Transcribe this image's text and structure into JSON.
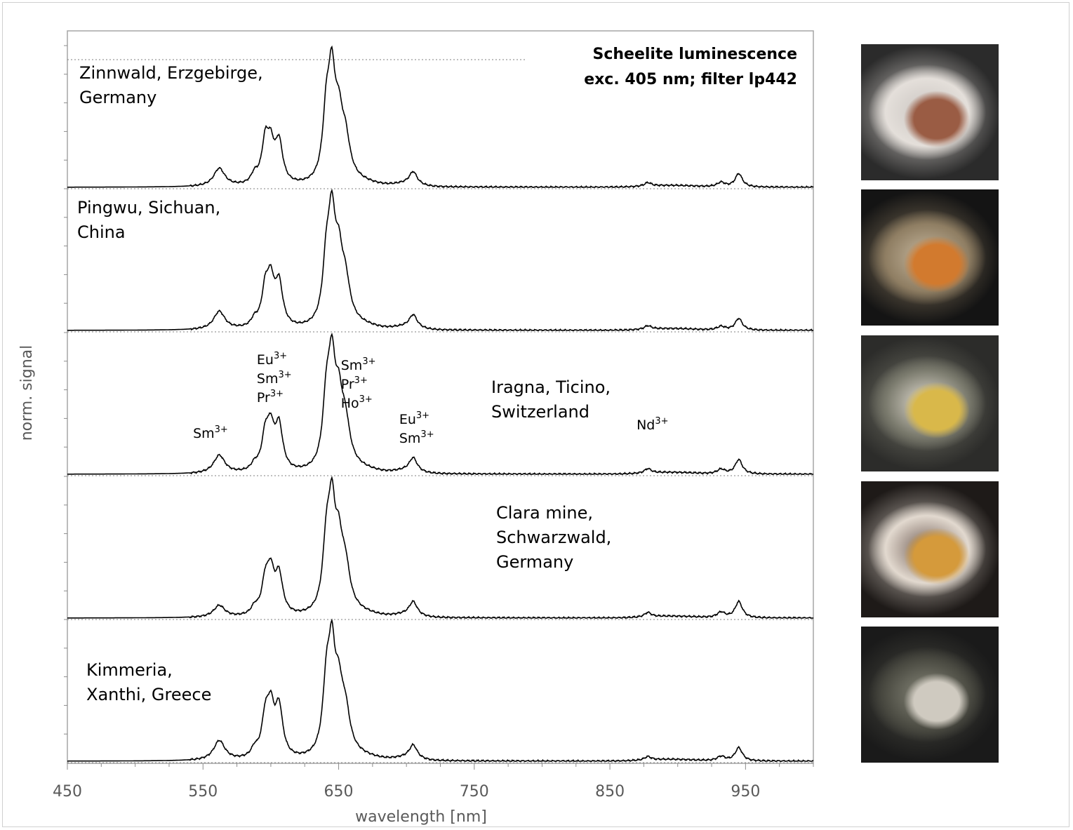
{
  "chart_data": {
    "type": "line",
    "title": [
      "Scheelite luminescence",
      "exc. 405 nm; filter lp442"
    ],
    "xlabel": "wavelength [nm]",
    "ylabel": "norm. signal",
    "xlim": [
      450,
      1000
    ],
    "xticks": [
      "450",
      "550",
      "650",
      "750",
      "850",
      "950"
    ],
    "xtick_values": [
      450,
      550,
      650,
      750,
      850,
      950
    ],
    "panel_ylim": [
      0,
      1
    ],
    "line_color": "#000000",
    "panels": [
      {
        "label": [
          "Zinnwald, Erzgebirge,",
          "Germany"
        ],
        "peak_scale": {
          "562": 0.2,
          "588": 0.1,
          "596": 0.46,
          "600": 0.34,
          "606": 0.45,
          "641": 0.7,
          "645": 1.0,
          "650": 0.58,
          "655": 0.4,
          "705": 0.14,
          "878": 0.04,
          "932": 0.05,
          "945": 0.15
        }
      },
      {
        "label": [
          "Pingwu, Sichuan,",
          "China"
        ],
        "peak_scale": {
          "562": 0.2,
          "588": 0.08,
          "596": 0.4,
          "600": 0.43,
          "606": 0.47,
          "641": 0.64,
          "645": 1.0,
          "650": 0.62,
          "655": 0.4,
          "705": 0.14,
          "878": 0.04,
          "932": 0.04,
          "945": 0.13
        }
      },
      {
        "label": [
          "Iragna, Ticino,",
          "Switzerland"
        ],
        "peak_scale": {
          "562": 0.2,
          "588": 0.07,
          "596": 0.38,
          "600": 0.39,
          "606": 0.49,
          "641": 0.7,
          "645": 0.98,
          "650": 0.62,
          "655": 0.42,
          "705": 0.15,
          "878": 0.05,
          "932": 0.05,
          "945": 0.16
        }
      },
      {
        "label": [
          "Clara mine,",
          "Schwarzwald,",
          "Germany"
        ],
        "peak_scale": {
          "562": 0.13,
          "588": 0.08,
          "596": 0.36,
          "600": 0.4,
          "606": 0.43,
          "641": 0.7,
          "645": 0.98,
          "650": 0.62,
          "655": 0.42,
          "705": 0.15,
          "878": 0.05,
          "932": 0.06,
          "945": 0.18
        }
      },
      {
        "label": [
          "Kimmeria,",
          "Xanthi, Greece"
        ],
        "peak_scale": {
          "562": 0.22,
          "588": 0.09,
          "596": 0.43,
          "600": 0.47,
          "606": 0.55,
          "641": 0.73,
          "645": 1.0,
          "650": 0.6,
          "655": 0.42,
          "705": 0.15,
          "878": 0.04,
          "932": 0.05,
          "945": 0.15
        }
      }
    ],
    "annotations": [
      {
        "lines": [
          [
            "Sm",
            "3+"
          ]
        ],
        "x": 553
      },
      {
        "lines": [
          [
            "Eu",
            "3+"
          ],
          [
            "Sm",
            "3+"
          ],
          [
            "Pr",
            "3+"
          ]
        ],
        "x": 600
      },
      {
        "lines": [
          [
            "Sm",
            "3+"
          ],
          [
            "Pr",
            "3+"
          ],
          [
            "Ho",
            "3+"
          ]
        ],
        "x": 662
      },
      {
        "lines": [
          [
            "Eu",
            "3+"
          ],
          [
            "Sm",
            "3+"
          ]
        ],
        "x": 705
      },
      {
        "lines": [
          [
            "Nd",
            "3+"
          ]
        ],
        "x": 880
      }
    ],
    "photo_colors": [
      [
        "#2b2b2b",
        "#c9c4c0",
        "#9a5c44",
        "#e4dfda"
      ],
      [
        "#141414",
        "#c8b9a0",
        "#d27a2e",
        "#8f7e63"
      ],
      [
        "#2c2c2a",
        "#e8e2d6",
        "#d9b84a",
        "#7a7a6d"
      ],
      [
        "#1e1a18",
        "#6d5a52",
        "#d59a3b",
        "#e2d9cf"
      ],
      [
        "#1a1a1a",
        "#8a8a7c",
        "#cfcac0",
        "#4d4d44"
      ]
    ]
  }
}
